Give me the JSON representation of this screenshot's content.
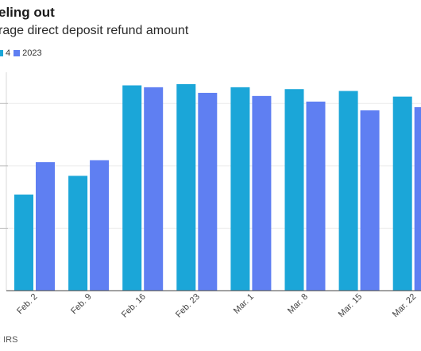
{
  "chart_data": {
    "type": "bar",
    "title": "eling out",
    "subtitle": "rage direct deposit refund amount",
    "categories": [
      "Feb. 2",
      "Feb. 9",
      "Feb. 16",
      "Feb. 23",
      "Mar. 1",
      "Mar. 8",
      "Mar. 15",
      "Mar. 22"
    ],
    "series": [
      {
        "name": "4",
        "color": "#1ba6d8",
        "values": [
          1540,
          1840,
          3290,
          3310,
          3260,
          3230,
          3200,
          3110
        ]
      },
      {
        "name": "2023",
        "color": "#5f7ff2",
        "values": [
          2060,
          2090,
          3260,
          3170,
          3120,
          3030,
          2890,
          2940
        ]
      }
    ],
    "ylim": [
      0,
      3500
    ],
    "grid": true,
    "legend_position": "top-left",
    "source": ": IRS"
  }
}
